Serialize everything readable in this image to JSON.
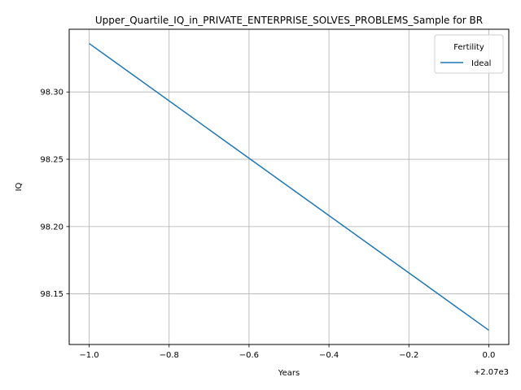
{
  "chart_data": {
    "type": "line",
    "title": "Upper_Quartile_IQ_in_PRIVATE_ENTERPRISE_SOLVES_PROBLEMS_Sample for BR",
    "xlabel": "Years",
    "ylabel": "IQ",
    "x_offset_label": "+2.07e3",
    "x_ticks": [
      -1.0,
      -0.8,
      -0.6,
      -0.4,
      -0.2,
      0.0
    ],
    "x_tick_labels": [
      "−1.0",
      "−0.8",
      "−0.6",
      "−0.4",
      "−0.2",
      "0.0"
    ],
    "y_ticks": [
      98.15,
      98.2,
      98.25,
      98.3
    ],
    "y_tick_labels": [
      "98.15",
      "98.20",
      "98.25",
      "98.30"
    ],
    "xlim": [
      -1.05,
      0.05
    ],
    "ylim": [
      98.1124,
      98.3466
    ],
    "grid": true,
    "legend": {
      "title": "Fertility",
      "placement": "top-right"
    },
    "series": [
      {
        "name": "Ideal",
        "color": "#1f77b4",
        "x": [
          -1.0,
          0.0
        ],
        "y": [
          98.336,
          98.123
        ]
      }
    ]
  }
}
